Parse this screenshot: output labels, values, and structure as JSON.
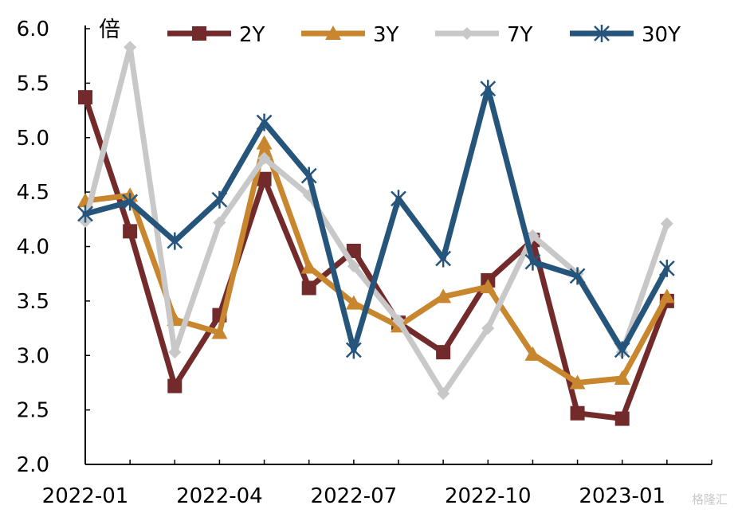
{
  "chart_data": {
    "type": "line",
    "y_unit_label": "倍",
    "x": [
      "2022-01",
      "2022-02",
      "2022-03",
      "2022-04",
      "2022-05",
      "2022-06",
      "2022-07",
      "2022-08",
      "2022-09",
      "2022-10",
      "2022-11",
      "2022-12",
      "2023-01",
      "2023-02"
    ],
    "x_tick_labels": [
      {
        "index": 0,
        "label": "2022-01"
      },
      {
        "index": 3,
        "label": "2022-04"
      },
      {
        "index": 6,
        "label": "2022-07"
      },
      {
        "index": 9,
        "label": "2022-10"
      },
      {
        "index": 12,
        "label": "2023-01"
      }
    ],
    "y_ticks": [
      "2.0",
      "2.5",
      "3.0",
      "3.5",
      "4.0",
      "4.5",
      "5.0",
      "5.5",
      "6.0"
    ],
    "ylim": [
      2.0,
      6.0
    ],
    "grid": false,
    "legend_position": "top",
    "series": [
      {
        "name": "2Y",
        "color": "#722a2a",
        "marker": "square",
        "values": [
          5.37,
          4.14,
          2.72,
          3.37,
          4.62,
          3.62,
          3.96,
          3.3,
          3.03,
          3.69,
          4.06,
          2.47,
          2.42,
          3.5
        ]
      },
      {
        "name": "3Y",
        "color": "#c8862e",
        "marker": "triangle",
        "values": [
          4.42,
          4.47,
          3.33,
          3.21,
          4.95,
          3.81,
          3.48,
          3.27,
          3.54,
          3.63,
          3.01,
          2.75,
          2.79,
          3.54
        ]
      },
      {
        "name": "7Y",
        "color": "#c8c8c8",
        "marker": "diamond",
        "values": [
          4.23,
          5.83,
          3.03,
          4.22,
          4.81,
          4.47,
          3.82,
          3.32,
          2.65,
          3.25,
          4.1,
          3.75,
          3.03,
          4.21
        ]
      },
      {
        "name": "30Y",
        "color": "#26557c",
        "marker": "star",
        "values": [
          4.3,
          4.41,
          4.05,
          4.43,
          5.14,
          4.65,
          3.05,
          4.44,
          3.89,
          5.45,
          3.86,
          3.73,
          3.05,
          3.8
        ]
      }
    ]
  },
  "watermark": "格隆汇"
}
